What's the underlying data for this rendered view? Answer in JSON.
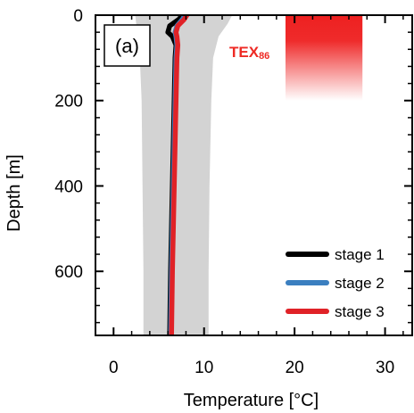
{
  "chart_data": {
    "type": "line",
    "panel_label": "(a)",
    "xlabel": "Temperature [°C]",
    "ylabel": "Depth [m]",
    "xlim": [
      -2,
      33
    ],
    "ylim": [
      750,
      0
    ],
    "y_inverted": true,
    "xticks": [
      0,
      10,
      20,
      30
    ],
    "yticks": [
      0,
      200,
      400,
      600
    ],
    "legend_position": "bottom-right",
    "envelope": {
      "color": "#d3d3d3",
      "depth": [
        0,
        20,
        50,
        100,
        200,
        400,
        600,
        750
      ],
      "lower": [
        2.4,
        2.5,
        2.7,
        2.9,
        3.1,
        3.2,
        3.3,
        3.3
      ],
      "upper": [
        13.1,
        12.6,
        11.6,
        11.0,
        10.8,
        10.6,
        10.5,
        10.5
      ]
    },
    "series": [
      {
        "name": "stage 1",
        "color": "#000000",
        "depth": [
          0,
          10,
          25,
          40,
          50,
          70,
          100,
          200,
          400,
          600,
          750
        ],
        "temperature": [
          7.6,
          7.2,
          6.2,
          6.0,
          6.5,
          6.9,
          6.8,
          6.7,
          6.5,
          6.3,
          6.2
        ]
      },
      {
        "name": "stage 2",
        "color": "#3b7fc0",
        "depth": [
          0,
          10,
          25,
          40,
          50,
          70,
          100,
          200,
          400,
          600,
          750
        ],
        "temperature": [
          7.9,
          7.6,
          7.0,
          6.8,
          6.9,
          7.0,
          6.9,
          6.8,
          6.6,
          6.4,
          6.3
        ]
      },
      {
        "name": "stage 3",
        "color": "#e02227",
        "depth": [
          0,
          10,
          25,
          40,
          50,
          70,
          100,
          200,
          400,
          600,
          750
        ],
        "temperature": [
          8.1,
          7.8,
          7.1,
          6.9,
          7.0,
          7.1,
          7.0,
          6.9,
          6.7,
          6.5,
          6.4
        ]
      }
    ],
    "tex86": {
      "label": "TEX",
      "subscript": "86",
      "color": "#ee2020",
      "temperature_range": [
        19.0,
        27.5
      ],
      "depth_range": [
        0,
        200
      ]
    }
  }
}
